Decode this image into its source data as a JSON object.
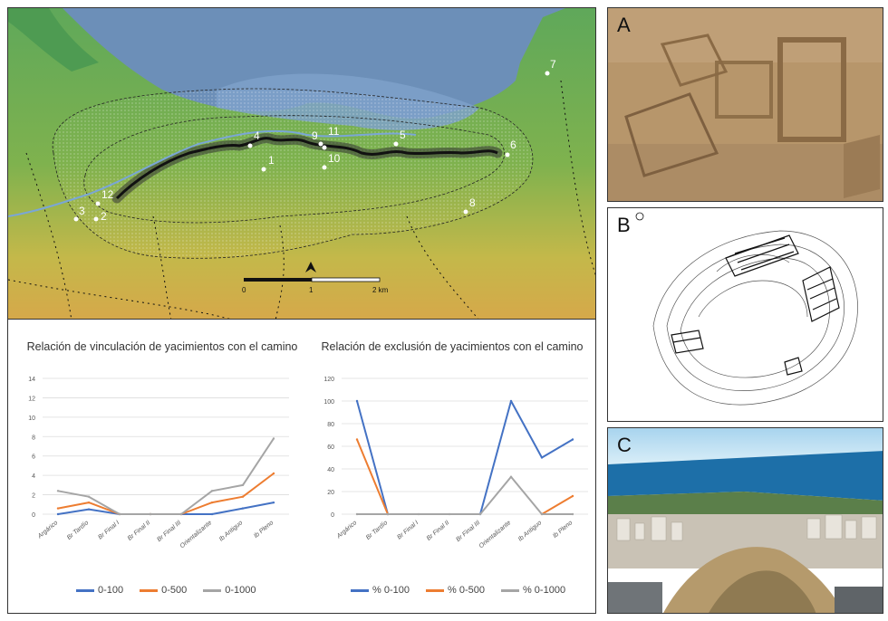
{
  "map": {
    "site_labels": [
      "1",
      "2",
      "3",
      "4",
      "5",
      "6",
      "7",
      "8",
      "9",
      "10",
      "11",
      "12"
    ],
    "scale_labels": [
      "0",
      "1",
      "2 km"
    ]
  },
  "panels": {
    "a": "A",
    "b": "B",
    "c": "C"
  },
  "chart_data": [
    {
      "type": "line",
      "title": "Relación de vinculación de yacimientos con el camino",
      "categories": [
        "Argárico",
        "Br Tardío",
        "Br Final I",
        "Br Final II",
        "Br Final III",
        "Orientalizante",
        "Ib Antiguo",
        "Ib Pleno"
      ],
      "ylim": [
        0,
        14
      ],
      "yticks": [
        0,
        2,
        4,
        6,
        8,
        10,
        12,
        14
      ],
      "grid": true,
      "legend": "bottom",
      "series": [
        {
          "name": "0-100",
          "values": [
            0,
            0.5,
            0,
            0,
            0,
            0,
            0.6,
            1.2
          ],
          "color": "#4472c4"
        },
        {
          "name": "0-500",
          "values": [
            0.6,
            1.2,
            0,
            0,
            0,
            1.2,
            1.8,
            4.2
          ],
          "color": "#ed7d31"
        },
        {
          "name": "0-1000",
          "values": [
            2.4,
            1.8,
            0,
            0,
            0,
            2.4,
            3.0,
            7.8
          ],
          "color": "#a5a5a5"
        }
      ]
    },
    {
      "type": "line",
      "title": "Relación de exclusión de yacimientos con el camino",
      "categories": [
        "Argárico",
        "Br Tardío",
        "Br Final I",
        "Br Final II",
        "Br Final III",
        "Orientalizante",
        "Ib Antiguo",
        "Ib Pleno"
      ],
      "ylim": [
        0,
        120
      ],
      "yticks": [
        0,
        20,
        40,
        60,
        80,
        100,
        120
      ],
      "grid": true,
      "legend": "bottom",
      "series": [
        {
          "name": "% 0-100",
          "values": [
            100,
            0,
            null,
            null,
            0,
            100,
            50,
            66
          ],
          "color": "#4472c4"
        },
        {
          "name": "% 0-500",
          "values": [
            66,
            0,
            null,
            null,
            null,
            null,
            0,
            16
          ],
          "color": "#ed7d31"
        },
        {
          "name": "% 0-1000",
          "values": [
            0,
            0,
            0,
            0,
            0,
            33,
            0,
            0
          ],
          "color": "#a5a5a5"
        }
      ]
    }
  ]
}
